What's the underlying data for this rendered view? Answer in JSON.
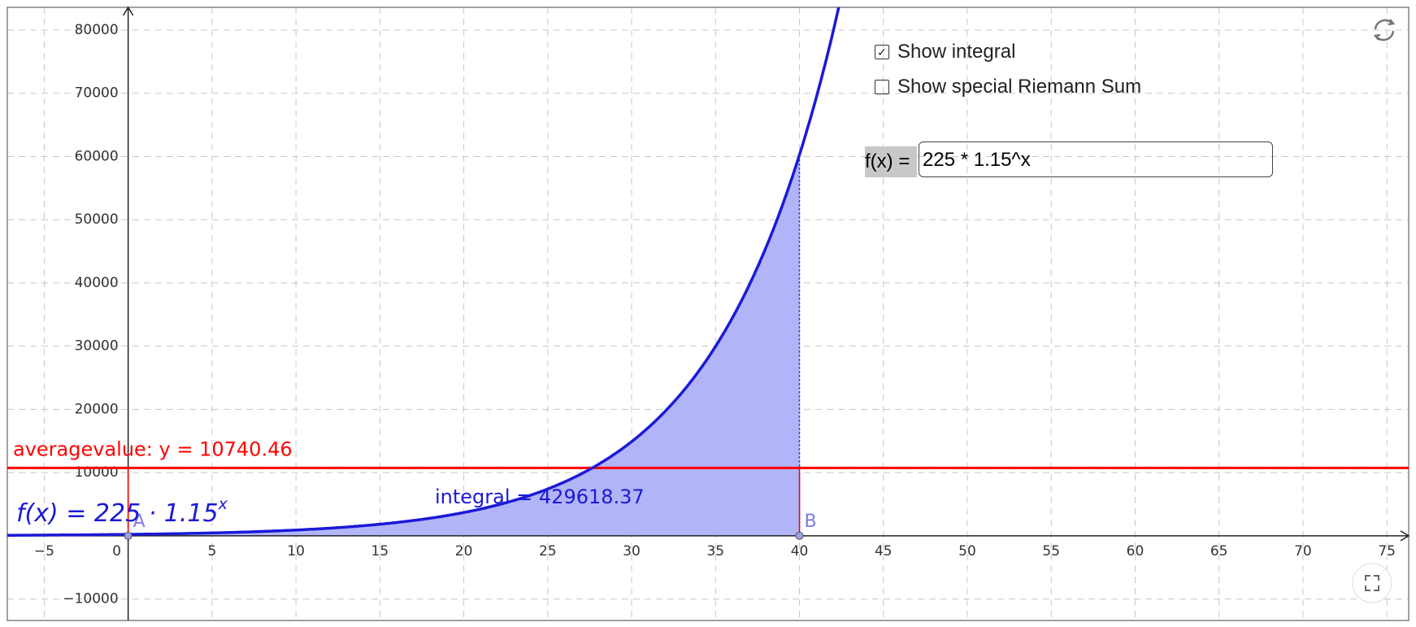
{
  "chart_data": {
    "type": "function",
    "xlim": [
      -7.2,
      76.3
    ],
    "ylim": [
      -13400,
      83600
    ],
    "xticks": [
      {
        "value": -5,
        "label": "−5"
      },
      0,
      5,
      10,
      15,
      20,
      25,
      30,
      35,
      40,
      45,
      50,
      55,
      60,
      65,
      70,
      75
    ],
    "yticks": [
      {
        "value": -10000,
        "label": "−10000"
      },
      10000,
      20000,
      30000,
      40000,
      50000,
      60000,
      70000,
      80000
    ],
    "grid": true,
    "curve_color": "#1a1ad6",
    "function_label": {
      "base": "f(x)  =  225 · 1.15",
      "exponent": "x"
    },
    "integral": {
      "label": "integral = 429618.37",
      "from": 0,
      "to": 40,
      "fill": "#aeb0f8"
    },
    "points": [
      {
        "name": "A",
        "x": 0
      },
      {
        "name": "B",
        "x": 40
      }
    ],
    "average": {
      "label": "averagevalue: y = 10740.46",
      "value": 10740.46,
      "color": "#ff0000"
    }
  },
  "ui": {
    "checkboxes": [
      {
        "label": "Show integral",
        "checked": true
      },
      {
        "label": "Show special Riemann Sum",
        "checked": false
      }
    ],
    "input": {
      "label": "f(x) =",
      "value": "225 * 1.15^x"
    }
  }
}
